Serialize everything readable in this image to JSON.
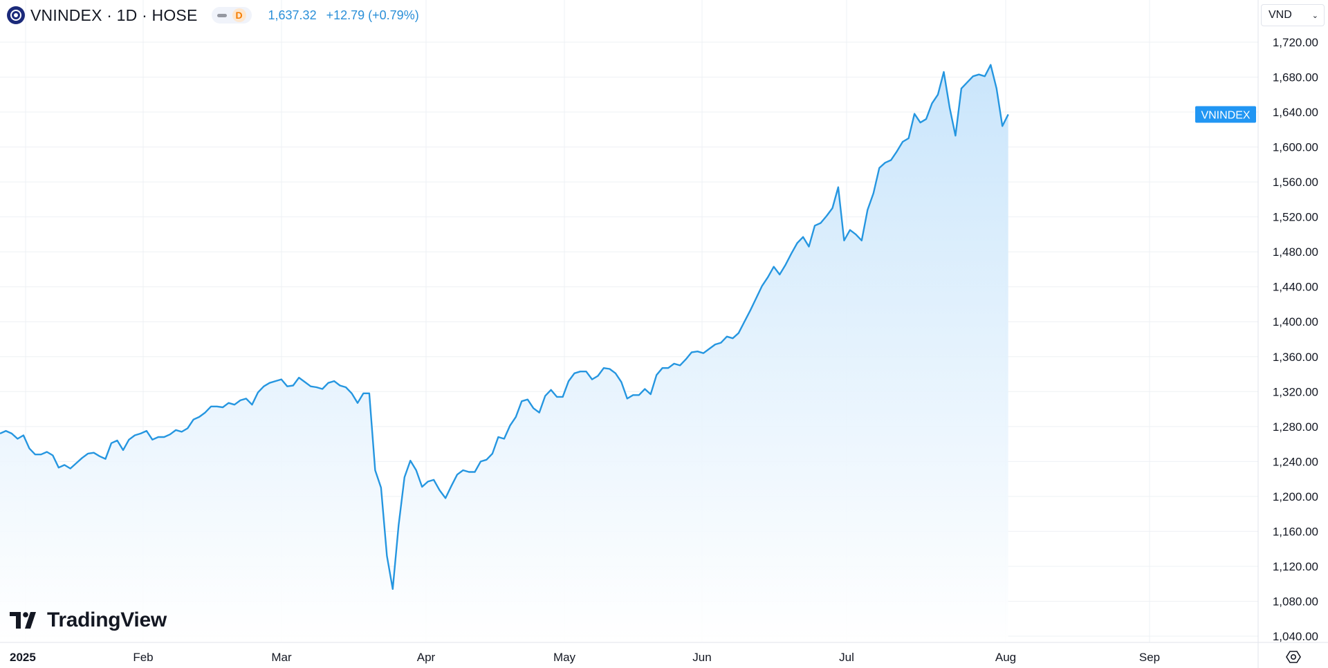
{
  "header": {
    "symbol_text": "VNINDEX · 1D · HOSE",
    "status_badge": "D",
    "last_price": "1,637.32",
    "change": "+12.79 (+0.79%)",
    "currency": "VND"
  },
  "brand": {
    "name": "TradingView"
  },
  "icons": {
    "logo": "vnindex-logo-icon",
    "settings": "gear-icon",
    "currency_chevron": "chevron-down-icon",
    "brand": "tradingview-logo-icon"
  },
  "colors": {
    "line": "#2596e0",
    "fill_top": "#c7e4fb",
    "fill_bottom": "#ffffff",
    "grid": "#eef0f4",
    "label_bg": "#2196f3",
    "axis_text": "#131722"
  },
  "chart_data": {
    "type": "area",
    "series": [
      {
        "name": "VNINDEX",
        "values": [
          1272,
          1275,
          1272,
          1266,
          1270,
          1255,
          1248,
          1248,
          1251,
          1247,
          1233,
          1236,
          1232,
          1238,
          1244,
          1249,
          1250,
          1246,
          1243,
          1261,
          1264,
          1253,
          1265,
          1270,
          1272,
          1275,
          1265,
          1268,
          1268,
          1271,
          1276,
          1274,
          1278,
          1288,
          1291,
          1296,
          1303,
          1303,
          1302,
          1307,
          1305,
          1310,
          1312,
          1305,
          1319,
          1326,
          1330,
          1332,
          1334,
          1326,
          1327,
          1336,
          1331,
          1326,
          1325,
          1323,
          1330,
          1332,
          1327,
          1325,
          1318,
          1307,
          1318,
          1318,
          1230,
          1210,
          1132,
          1094,
          1167,
          1222,
          1241,
          1230,
          1211,
          1217,
          1219,
          1207,
          1198,
          1212,
          1225,
          1230,
          1228,
          1228,
          1240,
          1242,
          1249,
          1268,
          1266,
          1281,
          1291,
          1309,
          1311,
          1301,
          1296,
          1315,
          1322,
          1314,
          1314,
          1332,
          1341,
          1343,
          1343,
          1334,
          1338,
          1347,
          1346,
          1341,
          1331,
          1312,
          1316,
          1316,
          1323,
          1317,
          1339,
          1347,
          1347,
          1352,
          1350,
          1357,
          1365,
          1366,
          1364,
          1369,
          1374,
          1376,
          1383,
          1381,
          1387,
          1400,
          1413,
          1427,
          1441,
          1451,
          1463,
          1454,
          1465,
          1478,
          1490,
          1497,
          1486,
          1510,
          1513,
          1521,
          1530,
          1554,
          1493,
          1505,
          1500,
          1493,
          1528,
          1547,
          1576,
          1582,
          1585,
          1595,
          1606,
          1610,
          1638,
          1628,
          1632,
          1650,
          1660,
          1686,
          1645,
          1613,
          1667,
          1674,
          1681,
          1683,
          1681,
          1694,
          1667,
          1624,
          1637.32
        ]
      }
    ],
    "x_tick_labels": [
      "2025",
      "Feb",
      "Mar",
      "Apr",
      "May",
      "Jun",
      "Jul",
      "Aug",
      "Sep"
    ],
    "y_tick_labels": [
      "1,040.00",
      "1,080.00",
      "1,120.00",
      "1,160.00",
      "1,200.00",
      "1,240.00",
      "1,280.00",
      "1,320.00",
      "1,360.00",
      "1,400.00",
      "1,440.00",
      "1,480.00",
      "1,520.00",
      "1,560.00",
      "1,600.00",
      "1,640.00",
      "1,680.00",
      "1,720.00"
    ],
    "y_tick_values": [
      1040,
      1080,
      1120,
      1160,
      1200,
      1240,
      1280,
      1320,
      1360,
      1400,
      1440,
      1480,
      1520,
      1560,
      1600,
      1640,
      1680,
      1720
    ],
    "last_value_label": "VNINDEX",
    "grid": true,
    "y_axis_position": "right"
  }
}
